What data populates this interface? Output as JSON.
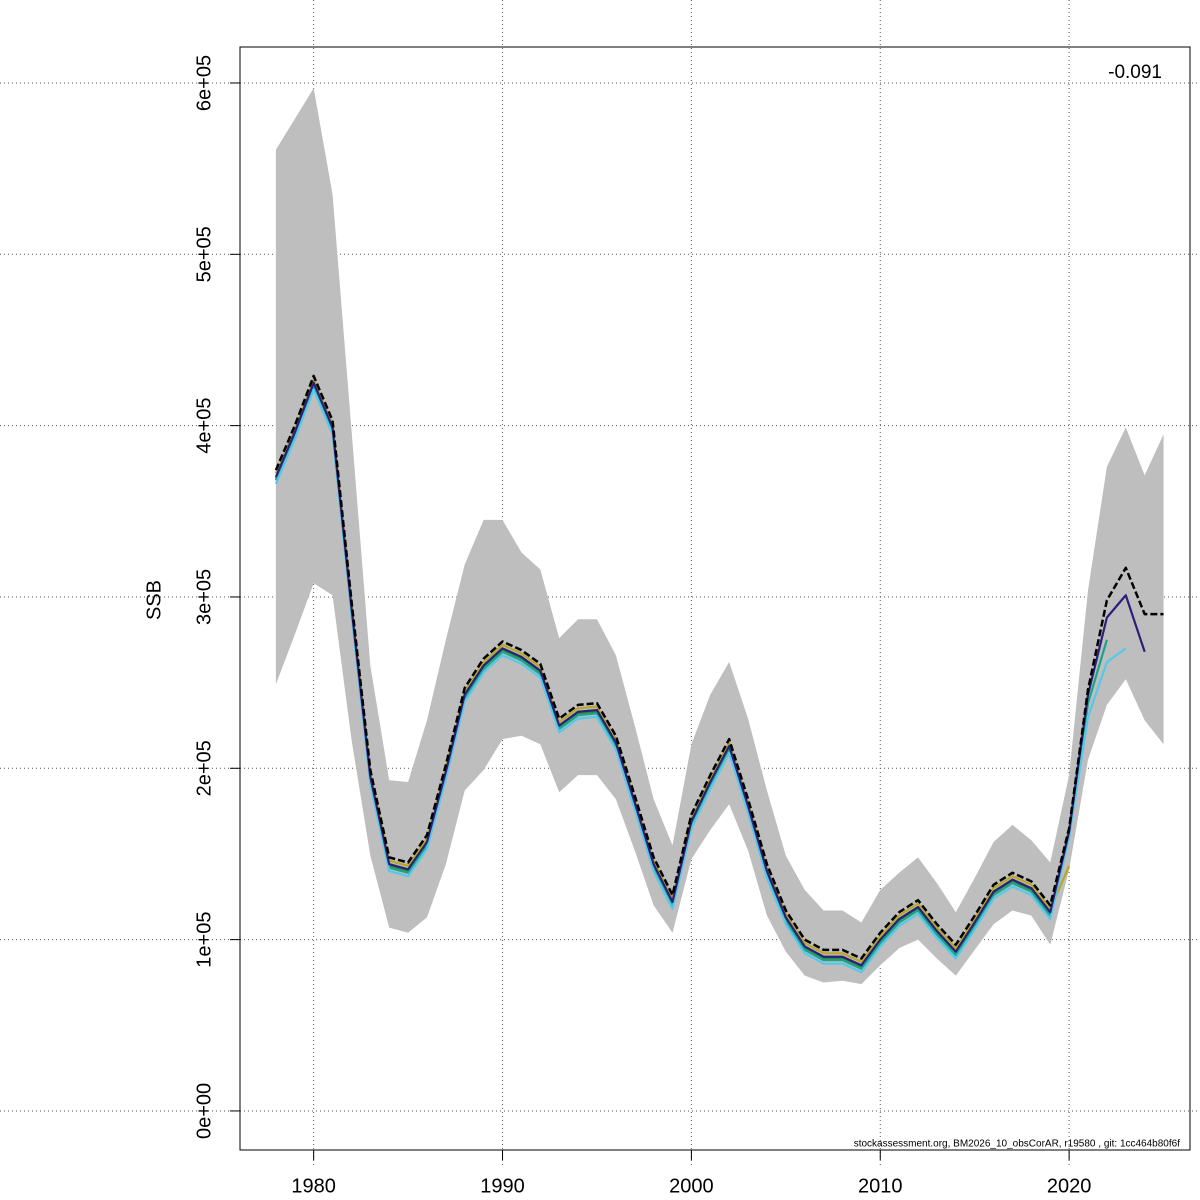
{
  "chart_data": {
    "type": "line",
    "y_label": "SSB",
    "annotation": "-0.091",
    "footer": "stockassessment.org, BM2026_10_obsCorAR, r19580 , git: 1cc464b80f6f",
    "x": [
      1978,
      1979,
      1980,
      1981,
      1982,
      1983,
      1984,
      1985,
      1986,
      1987,
      1988,
      1989,
      1990,
      1991,
      1992,
      1993,
      1994,
      1995,
      1996,
      1997,
      1998,
      1999,
      2000,
      2001,
      2002,
      2003,
      2004,
      2005,
      2006,
      2007,
      2008,
      2009,
      2010,
      2011,
      2012,
      2013,
      2014,
      2015,
      2016,
      2017,
      2018,
      2019,
      2020,
      2021,
      2022,
      2023,
      2024,
      2025
    ],
    "band": {
      "color": "#bebebe",
      "upper": [
        561000,
        579000,
        597000,
        535000,
        398000,
        260000,
        193000,
        192000,
        228000,
        275000,
        319000,
        345000,
        345000,
        326000,
        316000,
        276000,
        287000,
        287000,
        266000,
        225000,
        182000,
        155000,
        214000,
        243000,
        262000,
        229000,
        187000,
        149000,
        129000,
        117000,
        117000,
        110000,
        129000,
        139000,
        148000,
        133000,
        116000,
        136000,
        157000,
        167000,
        158000,
        145000,
        196000,
        304000,
        376000,
        399000,
        371000,
        395000
      ],
      "lower": [
        249000,
        278000,
        308000,
        301000,
        217000,
        149000,
        107000,
        104000,
        113000,
        144000,
        187000,
        199000,
        217000,
        219000,
        214000,
        186000,
        196000,
        196000,
        182000,
        152000,
        120000,
        104000,
        147000,
        164000,
        179000,
        152000,
        114000,
        93000,
        79000,
        75000,
        76000,
        74000,
        85000,
        95000,
        100000,
        89000,
        79000,
        94000,
        109000,
        117000,
        114000,
        97000,
        141000,
        205000,
        237000,
        252000,
        228000,
        214000
      ]
    },
    "series": [
      {
        "color": "#b8a82a",
        "values": [
          372000,
          398000,
          427000,
          401000,
          296000,
          197000,
          146000,
          143000,
          159000,
          200000,
          245000,
          262000,
          272000,
          267000,
          259000,
          227000,
          235000,
          236000,
          217000,
          182000,
          146000,
          124000,
          171000,
          194000,
          215000,
          180000,
          142000,
          115000,
          98000,
          92000,
          92000,
          87000,
          102000,
          114000,
          121000,
          107000,
          95000,
          112000,
          130000,
          137000,
          132000,
          118000,
          143000,
          null,
          null,
          null,
          null,
          null
        ]
      },
      {
        "color": "#2e8b3a",
        "values": [
          369000,
          395000,
          424000,
          398000,
          293000,
          194000,
          143000,
          140000,
          156000,
          197000,
          242000,
          259000,
          269000,
          264000,
          256000,
          224000,
          232000,
          233000,
          214000,
          179000,
          143000,
          121000,
          168000,
          191000,
          212000,
          177000,
          139000,
          112000,
          95000,
          89000,
          89000,
          84000,
          99000,
          111000,
          118000,
          104000,
          92000,
          109000,
          127000,
          134000,
          129000,
          115000,
          164000,
          242000,
          null,
          null,
          null,
          null
        ]
      },
      {
        "color": "#1aa58a",
        "values": [
          368000,
          394000,
          423000,
          397000,
          292000,
          193000,
          142000,
          139000,
          155000,
          196000,
          241000,
          258000,
          268000,
          263000,
          255000,
          223000,
          231000,
          232000,
          213000,
          178000,
          142000,
          120000,
          167000,
          190000,
          211000,
          176000,
          138000,
          111000,
          94000,
          88000,
          88000,
          83000,
          98000,
          110000,
          117000,
          103000,
          91000,
          108000,
          126000,
          133000,
          128000,
          114000,
          162000,
          238000,
          275000,
          null,
          null,
          null
        ]
      },
      {
        "color": "#56c8e8",
        "values": [
          366000,
          392000,
          421000,
          395000,
          290000,
          191000,
          140000,
          137000,
          153000,
          194000,
          239000,
          256000,
          266000,
          261000,
          253000,
          221000,
          229000,
          230000,
          211000,
          176000,
          140000,
          118000,
          165000,
          188000,
          209000,
          174000,
          136000,
          109000,
          92000,
          86000,
          86000,
          81000,
          96000,
          108000,
          115000,
          101000,
          89000,
          106000,
          124000,
          131000,
          126000,
          112000,
          160000,
          230000,
          262000,
          270000,
          null,
          null
        ]
      },
      {
        "color": "#2c1f7a",
        "values": [
          370000,
          396000,
          425000,
          399000,
          294000,
          195000,
          144000,
          141000,
          157000,
          198000,
          243000,
          260000,
          270000,
          265000,
          257000,
          225000,
          233000,
          234000,
          215000,
          180000,
          144000,
          122000,
          169000,
          192000,
          213000,
          178000,
          140000,
          113000,
          96000,
          90000,
          90000,
          85000,
          100000,
          112000,
          119000,
          105000,
          93000,
          110000,
          128000,
          135000,
          130000,
          116000,
          163000,
          243000,
          288000,
          301000,
          268000,
          null
        ]
      },
      {
        "color": "#000000",
        "values": [
          374000,
          400000,
          429000,
          403000,
          298000,
          199000,
          148000,
          145000,
          161000,
          202000,
          247000,
          264000,
          274000,
          269000,
          261000,
          229000,
          237000,
          238000,
          219000,
          184000,
          148000,
          126000,
          173000,
          196000,
          217000,
          182000,
          144000,
          117000,
          100000,
          94000,
          94000,
          89000,
          104000,
          116000,
          123000,
          109000,
          97000,
          114000,
          132000,
          139000,
          134000,
          120000,
          165000,
          246000,
          298000,
          317000,
          290000,
          290000
        ]
      }
    ],
    "xlim": [
      1976.1,
      2026.4
    ],
    "xticks": [
      1980,
      1990,
      2000,
      2010,
      2020
    ],
    "ylim": [
      -22800,
      621000
    ],
    "yticks": [
      {
        "value": 0,
        "label": "0e+00"
      },
      {
        "value": 100000,
        "label": "1e+05"
      },
      {
        "value": 200000,
        "label": "2e+05"
      },
      {
        "value": 300000,
        "label": "3e+05"
      },
      {
        "value": 400000,
        "label": "4e+05"
      },
      {
        "value": 500000,
        "label": "5e+05"
      },
      {
        "value": 600000,
        "label": "6e+05"
      }
    ],
    "grid": true
  }
}
